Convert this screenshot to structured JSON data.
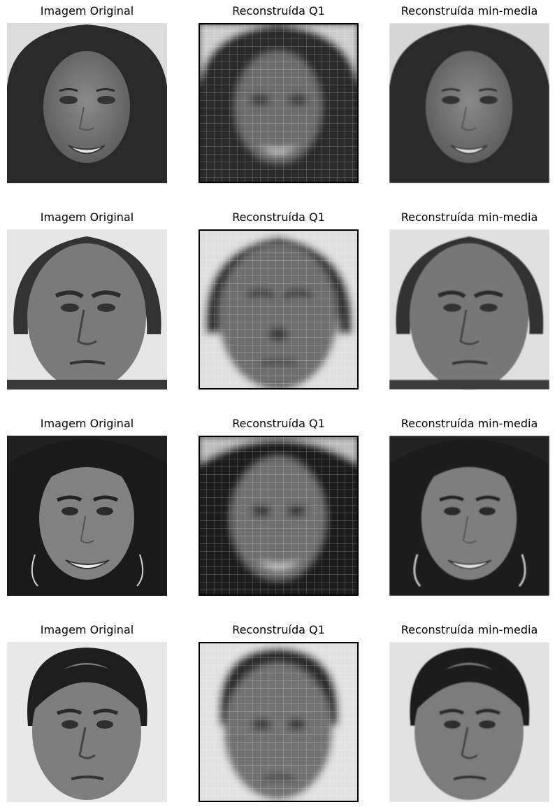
{
  "figure": {
    "rows": [
      {
        "panels": [
          {
            "title": "Imagem Original",
            "icon": "female-face-long-hair-smiling-icon",
            "variant": "original"
          },
          {
            "title": "Reconstruída Q1",
            "icon": "blurry-female-face-reconstruction-icon",
            "variant": "q1"
          },
          {
            "title": "Reconstruída min-media",
            "icon": "female-face-long-hair-smiling-icon",
            "variant": "minmedia"
          }
        ]
      },
      {
        "panels": [
          {
            "title": "Imagem Original",
            "icon": "male-face-older-curly-hair-icon",
            "variant": "original"
          },
          {
            "title": "Reconstruída Q1",
            "icon": "blurry-male-face-reconstruction-icon",
            "variant": "q1"
          },
          {
            "title": "Reconstruída min-media",
            "icon": "male-face-older-curly-hair-icon",
            "variant": "minmedia"
          }
        ]
      },
      {
        "panels": [
          {
            "title": "Imagem Original",
            "icon": "female-face-dark-hair-earrings-icon",
            "variant": "original"
          },
          {
            "title": "Reconstruída Q1",
            "icon": "blurry-female-face-reconstruction-icon",
            "variant": "q1"
          },
          {
            "title": "Reconstruída min-media",
            "icon": "female-face-dark-hair-earrings-icon",
            "variant": "minmedia"
          }
        ]
      },
      {
        "panels": [
          {
            "title": "Imagem Original",
            "icon": "male-face-young-curly-hair-icon",
            "variant": "original"
          },
          {
            "title": "Reconstruída Q1",
            "icon": "blurry-male-face-reconstruction-icon",
            "variant": "q1"
          },
          {
            "title": "Reconstruída min-media",
            "icon": "male-face-young-curly-hair-icon",
            "variant": "minmedia"
          }
        ]
      }
    ]
  }
}
